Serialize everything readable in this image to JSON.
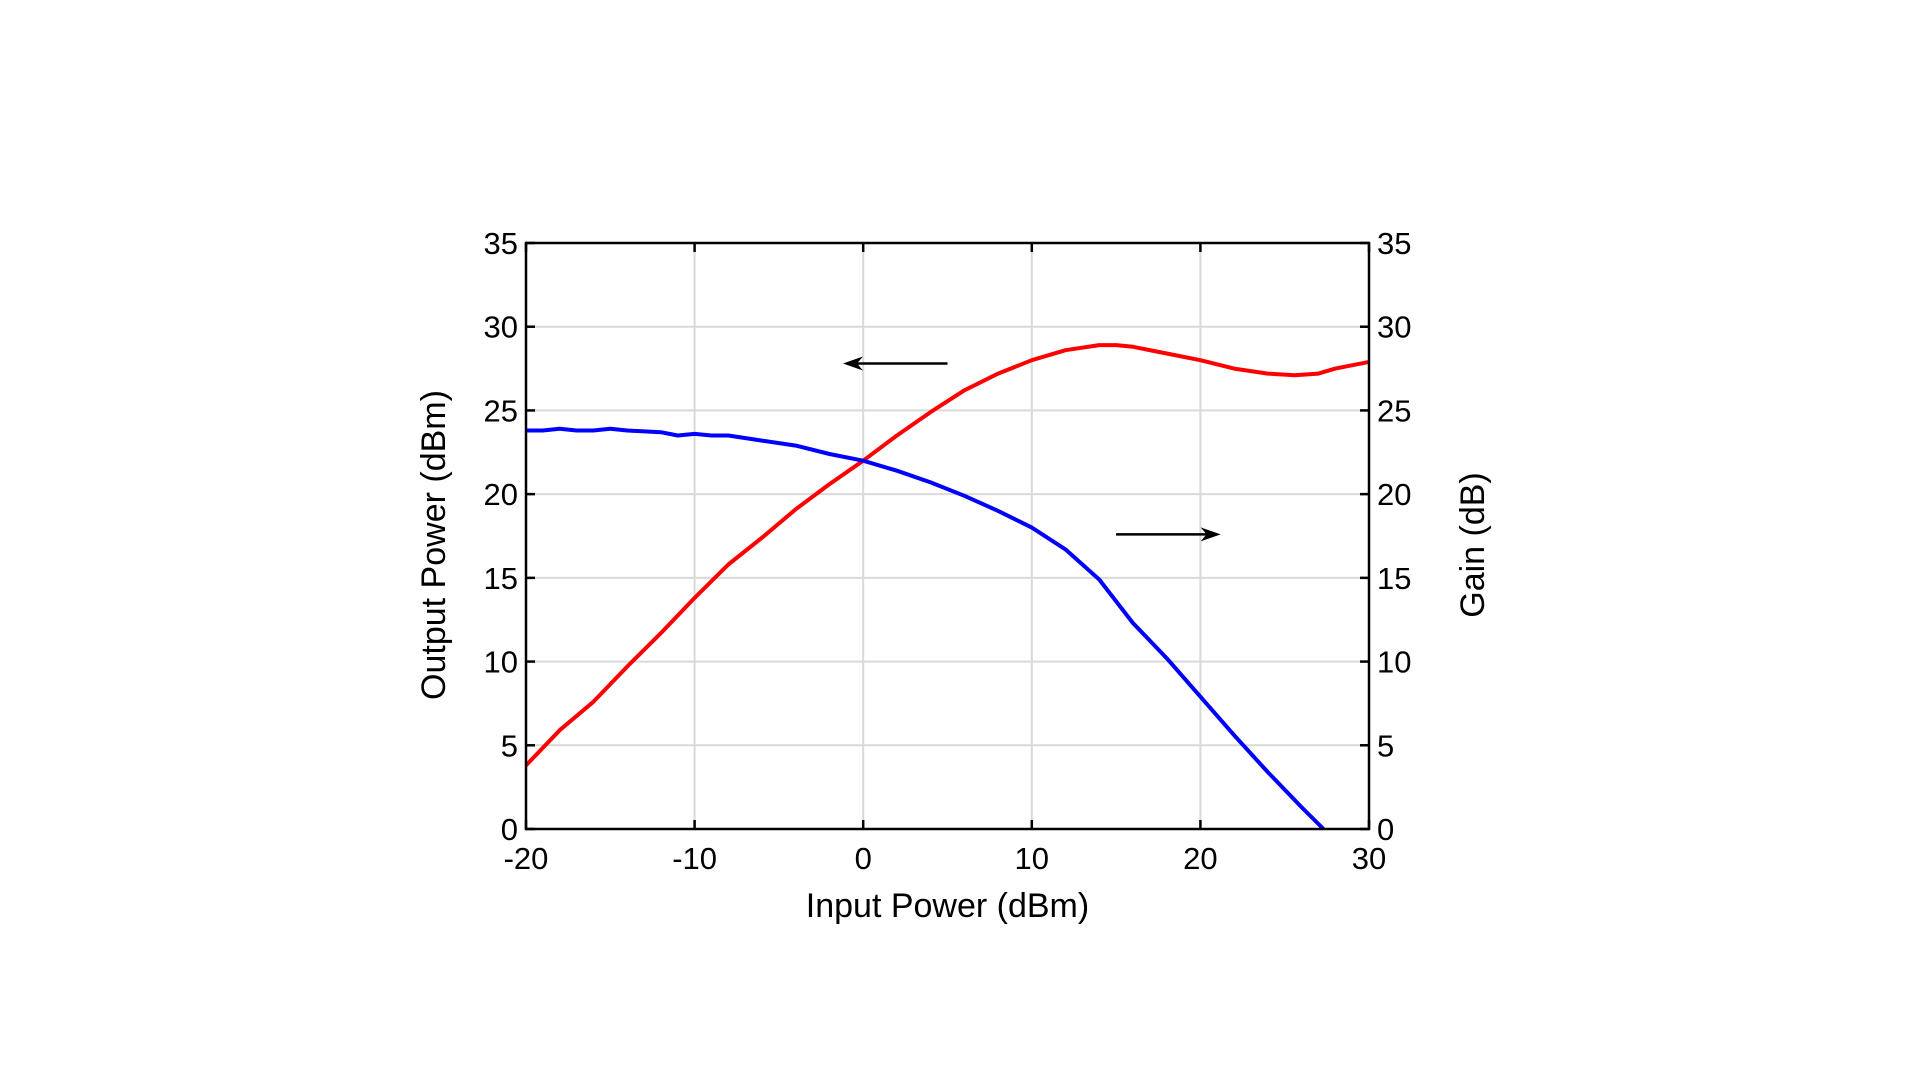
{
  "chart_data": {
    "type": "line",
    "title": "",
    "xlabel": "Input Power (dBm)",
    "ylabel": "Output Power (dBm)",
    "y2label": "Gain (dB)",
    "xlim": [
      -20,
      30
    ],
    "ylim": [
      0,
      35
    ],
    "y2lim": [
      0,
      35
    ],
    "xticks": [
      -20,
      -10,
      0,
      10,
      20,
      30
    ],
    "yticks": [
      0,
      5,
      10,
      15,
      20,
      25,
      30,
      35
    ],
    "y2ticks": [
      0,
      5,
      10,
      15,
      20,
      25,
      30,
      35
    ],
    "grid": true,
    "legend": "none",
    "annotations": [
      {
        "type": "arrow",
        "direction": "left",
        "meaning": "red curve uses left axis (Output Power)",
        "from": [
          5,
          27.8
        ],
        "to": [
          -1.2,
          27.8
        ]
      },
      {
        "type": "arrow",
        "direction": "right",
        "meaning": "blue curve uses right axis (Gain)",
        "from": [
          15,
          17.6
        ],
        "to": [
          21.2,
          17.6
        ]
      }
    ],
    "series": [
      {
        "name": "Output Power",
        "axis": "left",
        "color": "#ff0000",
        "x": [
          -20,
          -18,
          -16,
          -14,
          -12,
          -10,
          -8,
          -6,
          -4,
          -2,
          0,
          2,
          4,
          6,
          8,
          10,
          12,
          14,
          15,
          16,
          18,
          20,
          22,
          24,
          25.6,
          27,
          28,
          30
        ],
        "values": [
          3.8,
          5.9,
          7.6,
          9.7,
          11.7,
          13.8,
          15.8,
          17.4,
          19.1,
          20.6,
          22.0,
          23.5,
          24.9,
          26.2,
          27.2,
          28.0,
          28.6,
          28.9,
          28.9,
          28.8,
          28.4,
          28.0,
          27.5,
          27.2,
          27.1,
          27.2,
          27.5,
          27.9
        ]
      },
      {
        "name": "Gain",
        "axis": "right",
        "color": "#0000ff",
        "x": [
          -20,
          -19,
          -18,
          -17,
          -16,
          -15,
          -14,
          -12,
          -11,
          -10,
          -9,
          -8,
          -6,
          -4,
          -2,
          0,
          2,
          4,
          6,
          8,
          10,
          12,
          14,
          16,
          18,
          20,
          22,
          24,
          26,
          27.3
        ],
        "values": [
          23.8,
          23.8,
          23.9,
          23.8,
          23.8,
          23.9,
          23.8,
          23.7,
          23.5,
          23.6,
          23.5,
          23.5,
          23.2,
          22.9,
          22.4,
          22.0,
          21.4,
          20.7,
          19.9,
          19.0,
          18.0,
          16.7,
          14.9,
          12.3,
          10.2,
          7.9,
          5.6,
          3.4,
          1.3,
          0.0
        ]
      }
    ]
  }
}
